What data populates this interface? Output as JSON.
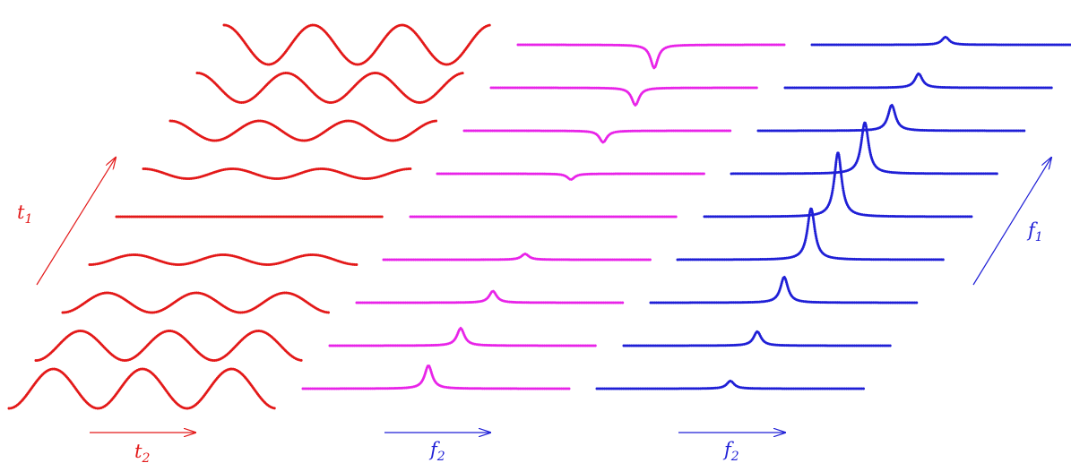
{
  "colors": {
    "time_domain": "#e31919",
    "first_fourier": "#e824e8",
    "second_fourier": "#1f1fd6"
  },
  "panels": [
    {
      "name": "time-domain-panel",
      "color_key": "time_domain",
      "kind": "wave",
      "rows": [
        {
          "t1_index": -4,
          "amplitude": 1.0
        },
        {
          "t1_index": -3,
          "amplitude": 0.75
        },
        {
          "t1_index": -2,
          "amplitude": 0.5
        },
        {
          "t1_index": -1,
          "amplitude": 0.25
        },
        {
          "t1_index": 0,
          "amplitude": 0.0
        },
        {
          "t1_index": 1,
          "amplitude": -0.25
        },
        {
          "t1_index": 2,
          "amplitude": -0.5
        },
        {
          "t1_index": 3,
          "amplitude": -0.75
        },
        {
          "t1_index": 4,
          "amplitude": -1.0
        }
      ]
    },
    {
      "name": "first-fourier-panel",
      "color_key": "first_fourier",
      "kind": "peak",
      "rows": [
        {
          "t1_index": -4,
          "peak": 1.0,
          "peak_pos": 0.47
        },
        {
          "t1_index": -3,
          "peak": 0.75,
          "peak_pos": 0.49
        },
        {
          "t1_index": -2,
          "peak": 0.5,
          "peak_pos": 0.51
        },
        {
          "t1_index": -1,
          "peak": 0.25,
          "peak_pos": 0.53
        },
        {
          "t1_index": 0,
          "peak": 0.0,
          "peak_pos": 0.55
        },
        {
          "t1_index": 1,
          "peak": -0.25,
          "peak_pos": 0.5
        },
        {
          "t1_index": 2,
          "peak": -0.5,
          "peak_pos": 0.52
        },
        {
          "t1_index": 3,
          "peak": -0.75,
          "peak_pos": 0.54
        },
        {
          "t1_index": 4,
          "peak": -1.0,
          "peak_pos": 0.51
        }
      ]
    },
    {
      "name": "second-fourier-panel",
      "color_key": "second_fourier",
      "kind": "peak",
      "rows": [
        {
          "t1_index": -4,
          "peak": 0.12,
          "peak_pos": 0.5
        },
        {
          "t1_index": -3,
          "peak": 0.22,
          "peak_pos": 0.5
        },
        {
          "t1_index": -2,
          "peak": 0.4,
          "peak_pos": 0.5
        },
        {
          "t1_index": -1,
          "peak": 0.8,
          "peak_pos": 0.5
        },
        {
          "t1_index": 0,
          "peak": 1.0,
          "peak_pos": 0.5
        },
        {
          "t1_index": 1,
          "peak": 0.8,
          "peak_pos": 0.5
        },
        {
          "t1_index": 2,
          "peak": 0.4,
          "peak_pos": 0.5
        },
        {
          "t1_index": 3,
          "peak": 0.22,
          "peak_pos": 0.5
        },
        {
          "t1_index": 4,
          "peak": 0.12,
          "peak_pos": 0.5
        }
      ]
    }
  ],
  "labels": {
    "t1": {
      "base": "t",
      "sub": "1"
    },
    "t2": {
      "base": "t",
      "sub": "2"
    },
    "f2_first": {
      "base": "f",
      "sub": "2"
    },
    "f2_second": {
      "base": "f",
      "sub": "2"
    },
    "f1": {
      "base": "f",
      "sub": "1"
    }
  }
}
